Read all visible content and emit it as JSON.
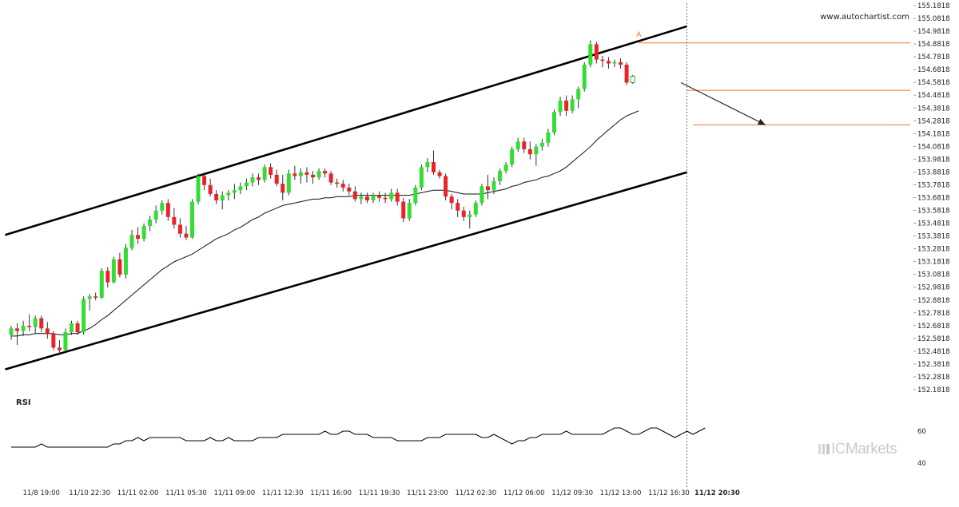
{
  "header": {
    "source_url": "www.autochartist.com"
  },
  "brand": {
    "prefix": "IC",
    "suffix": "Markets"
  },
  "rsi_panel": {
    "label": "RSI"
  },
  "chart_data": {
    "type": "candlestick",
    "price_axis": {
      "ylim": [
        152.1818,
        155.1818
      ],
      "ticks": [
        "155.1818",
        "155.0818",
        "154.9818",
        "154.8818",
        "154.7818",
        "154.6818",
        "154.5818",
        "154.4818",
        "154.3818",
        "154.2818",
        "154.1818",
        "154.0818",
        "153.9818",
        "153.8818",
        "153.7818",
        "153.6818",
        "153.5818",
        "153.4818",
        "153.3818",
        "153.2818",
        "153.1818",
        "153.0818",
        "152.9818",
        "152.8818",
        "152.7818",
        "152.6818",
        "152.5818",
        "152.4818",
        "152.3818",
        "152.2818",
        "152.1818"
      ]
    },
    "time_axis": {
      "labels": [
        {
          "index": 5,
          "text": "11/8 19:00"
        },
        {
          "index": 13,
          "text": "11/10 22:30"
        },
        {
          "index": 21,
          "text": "11/11 02:00"
        },
        {
          "index": 29,
          "text": "11/11 05:30"
        },
        {
          "index": 37,
          "text": "11/11 09:00"
        },
        {
          "index": 45,
          "text": "11/11 12:30"
        },
        {
          "index": 53,
          "text": "11/11 16:00"
        },
        {
          "index": 61,
          "text": "11/11 19:30"
        },
        {
          "index": 69,
          "text": "11/11 23:00"
        },
        {
          "index": 77,
          "text": "11/12 02:30"
        },
        {
          "index": 85,
          "text": "11/12 06:00"
        },
        {
          "index": 93,
          "text": "11/12 09:30"
        },
        {
          "index": 101,
          "text": "11/12 13:00"
        },
        {
          "index": 109,
          "text": "11/12 16:30"
        },
        {
          "index": 117,
          "text": "11/12 20:30",
          "bold": true
        }
      ]
    },
    "candles": [
      {
        "o": 152.61,
        "h": 152.68,
        "l": 152.57,
        "c": 152.66
      },
      {
        "o": 152.66,
        "h": 152.7,
        "l": 152.53,
        "c": 152.64
      },
      {
        "o": 152.64,
        "h": 152.72,
        "l": 152.6,
        "c": 152.68
      },
      {
        "o": 152.68,
        "h": 152.77,
        "l": 152.64,
        "c": 152.67
      },
      {
        "o": 152.67,
        "h": 152.76,
        "l": 152.62,
        "c": 152.74
      },
      {
        "o": 152.74,
        "h": 152.76,
        "l": 152.63,
        "c": 152.66
      },
      {
        "o": 152.66,
        "h": 152.71,
        "l": 152.58,
        "c": 152.62
      },
      {
        "o": 152.62,
        "h": 152.64,
        "l": 152.49,
        "c": 152.51
      },
      {
        "o": 152.51,
        "h": 152.57,
        "l": 152.45,
        "c": 152.49
      },
      {
        "o": 152.49,
        "h": 152.66,
        "l": 152.48,
        "c": 152.63
      },
      {
        "o": 152.63,
        "h": 152.72,
        "l": 152.61,
        "c": 152.7
      },
      {
        "o": 152.7,
        "h": 152.72,
        "l": 152.61,
        "c": 152.63
      },
      {
        "o": 152.63,
        "h": 152.91,
        "l": 152.61,
        "c": 152.89
      },
      {
        "o": 152.89,
        "h": 152.93,
        "l": 152.8,
        "c": 152.91
      },
      {
        "o": 152.91,
        "h": 152.94,
        "l": 152.88,
        "c": 152.9
      },
      {
        "o": 152.9,
        "h": 153.13,
        "l": 152.89,
        "c": 153.11
      },
      {
        "o": 153.11,
        "h": 153.14,
        "l": 152.98,
        "c": 153.02
      },
      {
        "o": 153.02,
        "h": 153.22,
        "l": 153.01,
        "c": 153.2
      },
      {
        "o": 153.2,
        "h": 153.25,
        "l": 153.06,
        "c": 153.08
      },
      {
        "o": 153.08,
        "h": 153.32,
        "l": 153.05,
        "c": 153.29
      },
      {
        "o": 153.29,
        "h": 153.43,
        "l": 153.27,
        "c": 153.39
      },
      {
        "o": 153.39,
        "h": 153.45,
        "l": 153.32,
        "c": 153.36
      },
      {
        "o": 153.36,
        "h": 153.48,
        "l": 153.34,
        "c": 153.46
      },
      {
        "o": 153.46,
        "h": 153.54,
        "l": 153.42,
        "c": 153.51
      },
      {
        "o": 153.51,
        "h": 153.62,
        "l": 153.48,
        "c": 153.58
      },
      {
        "o": 153.58,
        "h": 153.66,
        "l": 153.55,
        "c": 153.64
      },
      {
        "o": 153.64,
        "h": 153.67,
        "l": 153.5,
        "c": 153.53
      },
      {
        "o": 153.53,
        "h": 153.6,
        "l": 153.44,
        "c": 153.47
      },
      {
        "o": 153.47,
        "h": 153.52,
        "l": 153.37,
        "c": 153.4
      },
      {
        "o": 153.4,
        "h": 153.46,
        "l": 153.35,
        "c": 153.37
      },
      {
        "o": 153.37,
        "h": 153.67,
        "l": 153.36,
        "c": 153.65
      },
      {
        "o": 153.65,
        "h": 153.87,
        "l": 153.63,
        "c": 153.85
      },
      {
        "o": 153.85,
        "h": 153.88,
        "l": 153.74,
        "c": 153.78
      },
      {
        "o": 153.78,
        "h": 153.83,
        "l": 153.69,
        "c": 153.71
      },
      {
        "o": 153.71,
        "h": 153.74,
        "l": 153.63,
        "c": 153.66
      },
      {
        "o": 153.66,
        "h": 153.73,
        "l": 153.59,
        "c": 153.7
      },
      {
        "o": 153.7,
        "h": 153.74,
        "l": 153.66,
        "c": 153.72
      },
      {
        "o": 153.72,
        "h": 153.79,
        "l": 153.67,
        "c": 153.74
      },
      {
        "o": 153.74,
        "h": 153.8,
        "l": 153.71,
        "c": 153.77
      },
      {
        "o": 153.77,
        "h": 153.83,
        "l": 153.74,
        "c": 153.8
      },
      {
        "o": 153.8,
        "h": 153.87,
        "l": 153.77,
        "c": 153.84
      },
      {
        "o": 153.84,
        "h": 153.87,
        "l": 153.78,
        "c": 153.82
      },
      {
        "o": 153.82,
        "h": 153.94,
        "l": 153.8,
        "c": 153.92
      },
      {
        "o": 153.92,
        "h": 153.95,
        "l": 153.83,
        "c": 153.86
      },
      {
        "o": 153.86,
        "h": 153.9,
        "l": 153.77,
        "c": 153.79
      },
      {
        "o": 153.79,
        "h": 153.86,
        "l": 153.66,
        "c": 153.72
      },
      {
        "o": 153.72,
        "h": 153.9,
        "l": 153.7,
        "c": 153.87
      },
      {
        "o": 153.87,
        "h": 153.93,
        "l": 153.82,
        "c": 153.85
      },
      {
        "o": 153.85,
        "h": 153.91,
        "l": 153.79,
        "c": 153.88
      },
      {
        "o": 153.88,
        "h": 153.92,
        "l": 153.8,
        "c": 153.86
      },
      {
        "o": 153.86,
        "h": 153.89,
        "l": 153.79,
        "c": 153.84
      },
      {
        "o": 153.84,
        "h": 153.91,
        "l": 153.82,
        "c": 153.89
      },
      {
        "o": 153.89,
        "h": 153.91,
        "l": 153.84,
        "c": 153.87
      },
      {
        "o": 153.87,
        "h": 153.89,
        "l": 153.78,
        "c": 153.8
      },
      {
        "o": 153.8,
        "h": 153.83,
        "l": 153.76,
        "c": 153.79
      },
      {
        "o": 153.79,
        "h": 153.82,
        "l": 153.73,
        "c": 153.76
      },
      {
        "o": 153.76,
        "h": 153.79,
        "l": 153.7,
        "c": 153.73
      },
      {
        "o": 153.73,
        "h": 153.77,
        "l": 153.65,
        "c": 153.67
      },
      {
        "o": 153.67,
        "h": 153.72,
        "l": 153.63,
        "c": 153.69
      },
      {
        "o": 153.69,
        "h": 153.72,
        "l": 153.64,
        "c": 153.66
      },
      {
        "o": 153.66,
        "h": 153.72,
        "l": 153.64,
        "c": 153.7
      },
      {
        "o": 153.7,
        "h": 153.73,
        "l": 153.65,
        "c": 153.68
      },
      {
        "o": 153.68,
        "h": 153.72,
        "l": 153.64,
        "c": 153.67
      },
      {
        "o": 153.67,
        "h": 153.75,
        "l": 153.65,
        "c": 153.72
      },
      {
        "o": 153.72,
        "h": 153.75,
        "l": 153.62,
        "c": 153.65
      },
      {
        "o": 153.65,
        "h": 153.68,
        "l": 153.49,
        "c": 153.52
      },
      {
        "o": 153.52,
        "h": 153.67,
        "l": 153.5,
        "c": 153.64
      },
      {
        "o": 153.64,
        "h": 153.78,
        "l": 153.62,
        "c": 153.76
      },
      {
        "o": 153.76,
        "h": 153.94,
        "l": 153.74,
        "c": 153.92
      },
      {
        "o": 153.92,
        "h": 153.99,
        "l": 153.88,
        "c": 153.96
      },
      {
        "o": 153.96,
        "h": 154.05,
        "l": 153.86,
        "c": 153.88
      },
      {
        "o": 153.88,
        "h": 153.9,
        "l": 153.83,
        "c": 153.85
      },
      {
        "o": 153.85,
        "h": 153.87,
        "l": 153.66,
        "c": 153.69
      },
      {
        "o": 153.69,
        "h": 153.71,
        "l": 153.59,
        "c": 153.64
      },
      {
        "o": 153.64,
        "h": 153.67,
        "l": 153.53,
        "c": 153.58
      },
      {
        "o": 153.58,
        "h": 153.61,
        "l": 153.5,
        "c": 153.53
      },
      {
        "o": 153.53,
        "h": 153.58,
        "l": 153.44,
        "c": 153.55
      },
      {
        "o": 153.55,
        "h": 153.66,
        "l": 153.53,
        "c": 153.64
      },
      {
        "o": 153.64,
        "h": 153.79,
        "l": 153.62,
        "c": 153.77
      },
      {
        "o": 153.77,
        "h": 153.86,
        "l": 153.67,
        "c": 153.74
      },
      {
        "o": 153.74,
        "h": 153.84,
        "l": 153.71,
        "c": 153.81
      },
      {
        "o": 153.81,
        "h": 153.91,
        "l": 153.78,
        "c": 153.89
      },
      {
        "o": 153.89,
        "h": 153.96,
        "l": 153.87,
        "c": 153.94
      },
      {
        "o": 153.94,
        "h": 154.08,
        "l": 153.92,
        "c": 154.06
      },
      {
        "o": 154.06,
        "h": 154.15,
        "l": 154.04,
        "c": 154.12
      },
      {
        "o": 154.12,
        "h": 154.15,
        "l": 154.03,
        "c": 154.06
      },
      {
        "o": 154.06,
        "h": 154.12,
        "l": 153.98,
        "c": 154.02
      },
      {
        "o": 154.02,
        "h": 154.1,
        "l": 153.93,
        "c": 154.08
      },
      {
        "o": 154.08,
        "h": 154.14,
        "l": 154.05,
        "c": 154.11
      },
      {
        "o": 154.11,
        "h": 154.22,
        "l": 154.08,
        "c": 154.19
      },
      {
        "o": 154.19,
        "h": 154.37,
        "l": 154.17,
        "c": 154.35
      },
      {
        "o": 154.35,
        "h": 154.47,
        "l": 154.32,
        "c": 154.44
      },
      {
        "o": 154.44,
        "h": 154.48,
        "l": 154.32,
        "c": 154.36
      },
      {
        "o": 154.36,
        "h": 154.48,
        "l": 154.34,
        "c": 154.45
      },
      {
        "o": 154.45,
        "h": 154.55,
        "l": 154.38,
        "c": 154.53
      },
      {
        "o": 154.53,
        "h": 154.74,
        "l": 154.51,
        "c": 154.72
      },
      {
        "o": 154.72,
        "h": 154.91,
        "l": 154.7,
        "c": 154.88
      },
      {
        "o": 154.88,
        "h": 154.9,
        "l": 154.73,
        "c": 154.76
      },
      {
        "o": 154.76,
        "h": 154.79,
        "l": 154.7,
        "c": 154.75
      },
      {
        "o": 154.75,
        "h": 154.78,
        "l": 154.69,
        "c": 154.73
      },
      {
        "o": 154.73,
        "h": 154.76,
        "l": 154.7,
        "c": 154.74
      },
      {
        "o": 154.74,
        "h": 154.77,
        "l": 154.69,
        "c": 154.72
      },
      {
        "o": 154.72,
        "h": 154.74,
        "l": 154.56,
        "c": 154.58
      },
      {
        "o": 154.58,
        "h": 154.64,
        "l": 154.57,
        "c": 154.63
      }
    ],
    "moving_average": [
      152.6,
      152.6,
      152.61,
      152.61,
      152.62,
      152.62,
      152.62,
      152.62,
      152.61,
      152.61,
      152.62,
      152.62,
      152.64,
      152.66,
      152.69,
      152.73,
      152.76,
      152.8,
      152.84,
      152.88,
      152.92,
      152.96,
      153.0,
      153.04,
      153.08,
      153.12,
      153.15,
      153.18,
      153.2,
      153.22,
      153.24,
      153.27,
      153.3,
      153.33,
      153.36,
      153.38,
      153.4,
      153.43,
      153.45,
      153.48,
      153.51,
      153.53,
      153.56,
      153.58,
      153.6,
      153.62,
      153.63,
      153.64,
      153.65,
      153.66,
      153.67,
      153.67,
      153.68,
      153.68,
      153.69,
      153.69,
      153.69,
      153.7,
      153.7,
      153.7,
      153.7,
      153.7,
      153.7,
      153.7,
      153.7,
      153.7,
      153.7,
      153.71,
      153.72,
      153.73,
      153.74,
      153.74,
      153.74,
      153.73,
      153.72,
      153.71,
      153.71,
      153.71,
      153.71,
      153.72,
      153.73,
      153.74,
      153.75,
      153.77,
      153.78,
      153.8,
      153.81,
      153.82,
      153.84,
      153.85,
      153.87,
      153.89,
      153.92,
      153.96,
      154.0,
      154.04,
      154.08,
      154.13,
      154.17,
      154.21,
      154.25,
      154.29,
      154.32,
      154.34,
      154.36
    ],
    "channel": {
      "upper": [
        {
          "index": -1,
          "price": 153.39
        },
        {
          "index": 112,
          "price": 155.02
        }
      ],
      "lower": [
        {
          "index": -1,
          "price": 152.34
        },
        {
          "index": 112,
          "price": 153.88
        }
      ]
    },
    "levels": [
      {
        "price": 154.89,
        "from_index": 104
      },
      {
        "price": 154.52,
        "from_index": 112
      },
      {
        "price": 154.25,
        "from_index": 113
      }
    ],
    "forecast_arrow": {
      "from": {
        "index": 111,
        "price": 154.58
      },
      "to": {
        "index": 125,
        "price": 154.25
      }
    },
    "pattern_marker": {
      "index": 104,
      "price": 154.94,
      "text": "A"
    },
    "current_time_index": 112,
    "rsi": {
      "ticks": [
        "60",
        "40"
      ],
      "ylim": [
        36,
        70
      ],
      "values": [
        50,
        50,
        50,
        50,
        50,
        52,
        50,
        50,
        50,
        50,
        50,
        50,
        50,
        50,
        50,
        50,
        50,
        52,
        52,
        54,
        54,
        56,
        54,
        56,
        56,
        56,
        56,
        56,
        56,
        54,
        54,
        54,
        54,
        56,
        54,
        54,
        56,
        54,
        54,
        54,
        54,
        56,
        56,
        56,
        56,
        58,
        58,
        58,
        58,
        58,
        58,
        58,
        60,
        58,
        58,
        60,
        60,
        58,
        58,
        58,
        56,
        56,
        56,
        56,
        54,
        54,
        54,
        54,
        54,
        56,
        56,
        56,
        58,
        58,
        58,
        58,
        58,
        58,
        56,
        56,
        58,
        56,
        54,
        52,
        54,
        54,
        56,
        56,
        58,
        58,
        58,
        58,
        60,
        58,
        58,
        58,
        58,
        58,
        58,
        60,
        62,
        62,
        60,
        58,
        58,
        60,
        62,
        62,
        60,
        58,
        56,
        58,
        60,
        58,
        60,
        62
      ]
    }
  }
}
